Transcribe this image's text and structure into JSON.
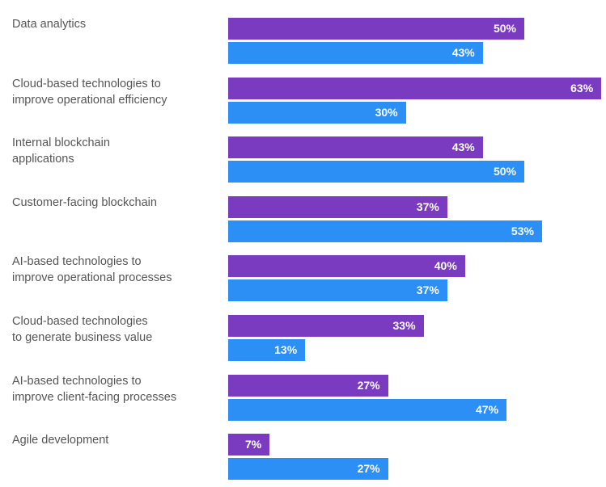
{
  "chart_data": {
    "type": "bar",
    "orientation": "horizontal",
    "title": "",
    "xlabel": "",
    "ylabel": "",
    "xlim": [
      0,
      63
    ],
    "grid": false,
    "legend": "none",
    "categories": [
      "Data analytics",
      "Cloud-based technologies to\nimprove operational efficiency",
      "Internal blockchain\napplications",
      "Customer-facing blockchain",
      "AI-based technologies to\nimprove operational processes",
      "Cloud-based technologies\nto generate business value",
      "AI-based technologies to\nimprove client-facing processes",
      "Agile development"
    ],
    "series": [
      {
        "name": "Series 1",
        "color": "#7a3bc0",
        "values": [
          50,
          63,
          43,
          37,
          40,
          33,
          27,
          7
        ]
      },
      {
        "name": "Series 2",
        "color": "#2b8ff5",
        "values": [
          43,
          30,
          50,
          53,
          37,
          13,
          47,
          27
        ]
      }
    ],
    "value_suffix": "%"
  }
}
